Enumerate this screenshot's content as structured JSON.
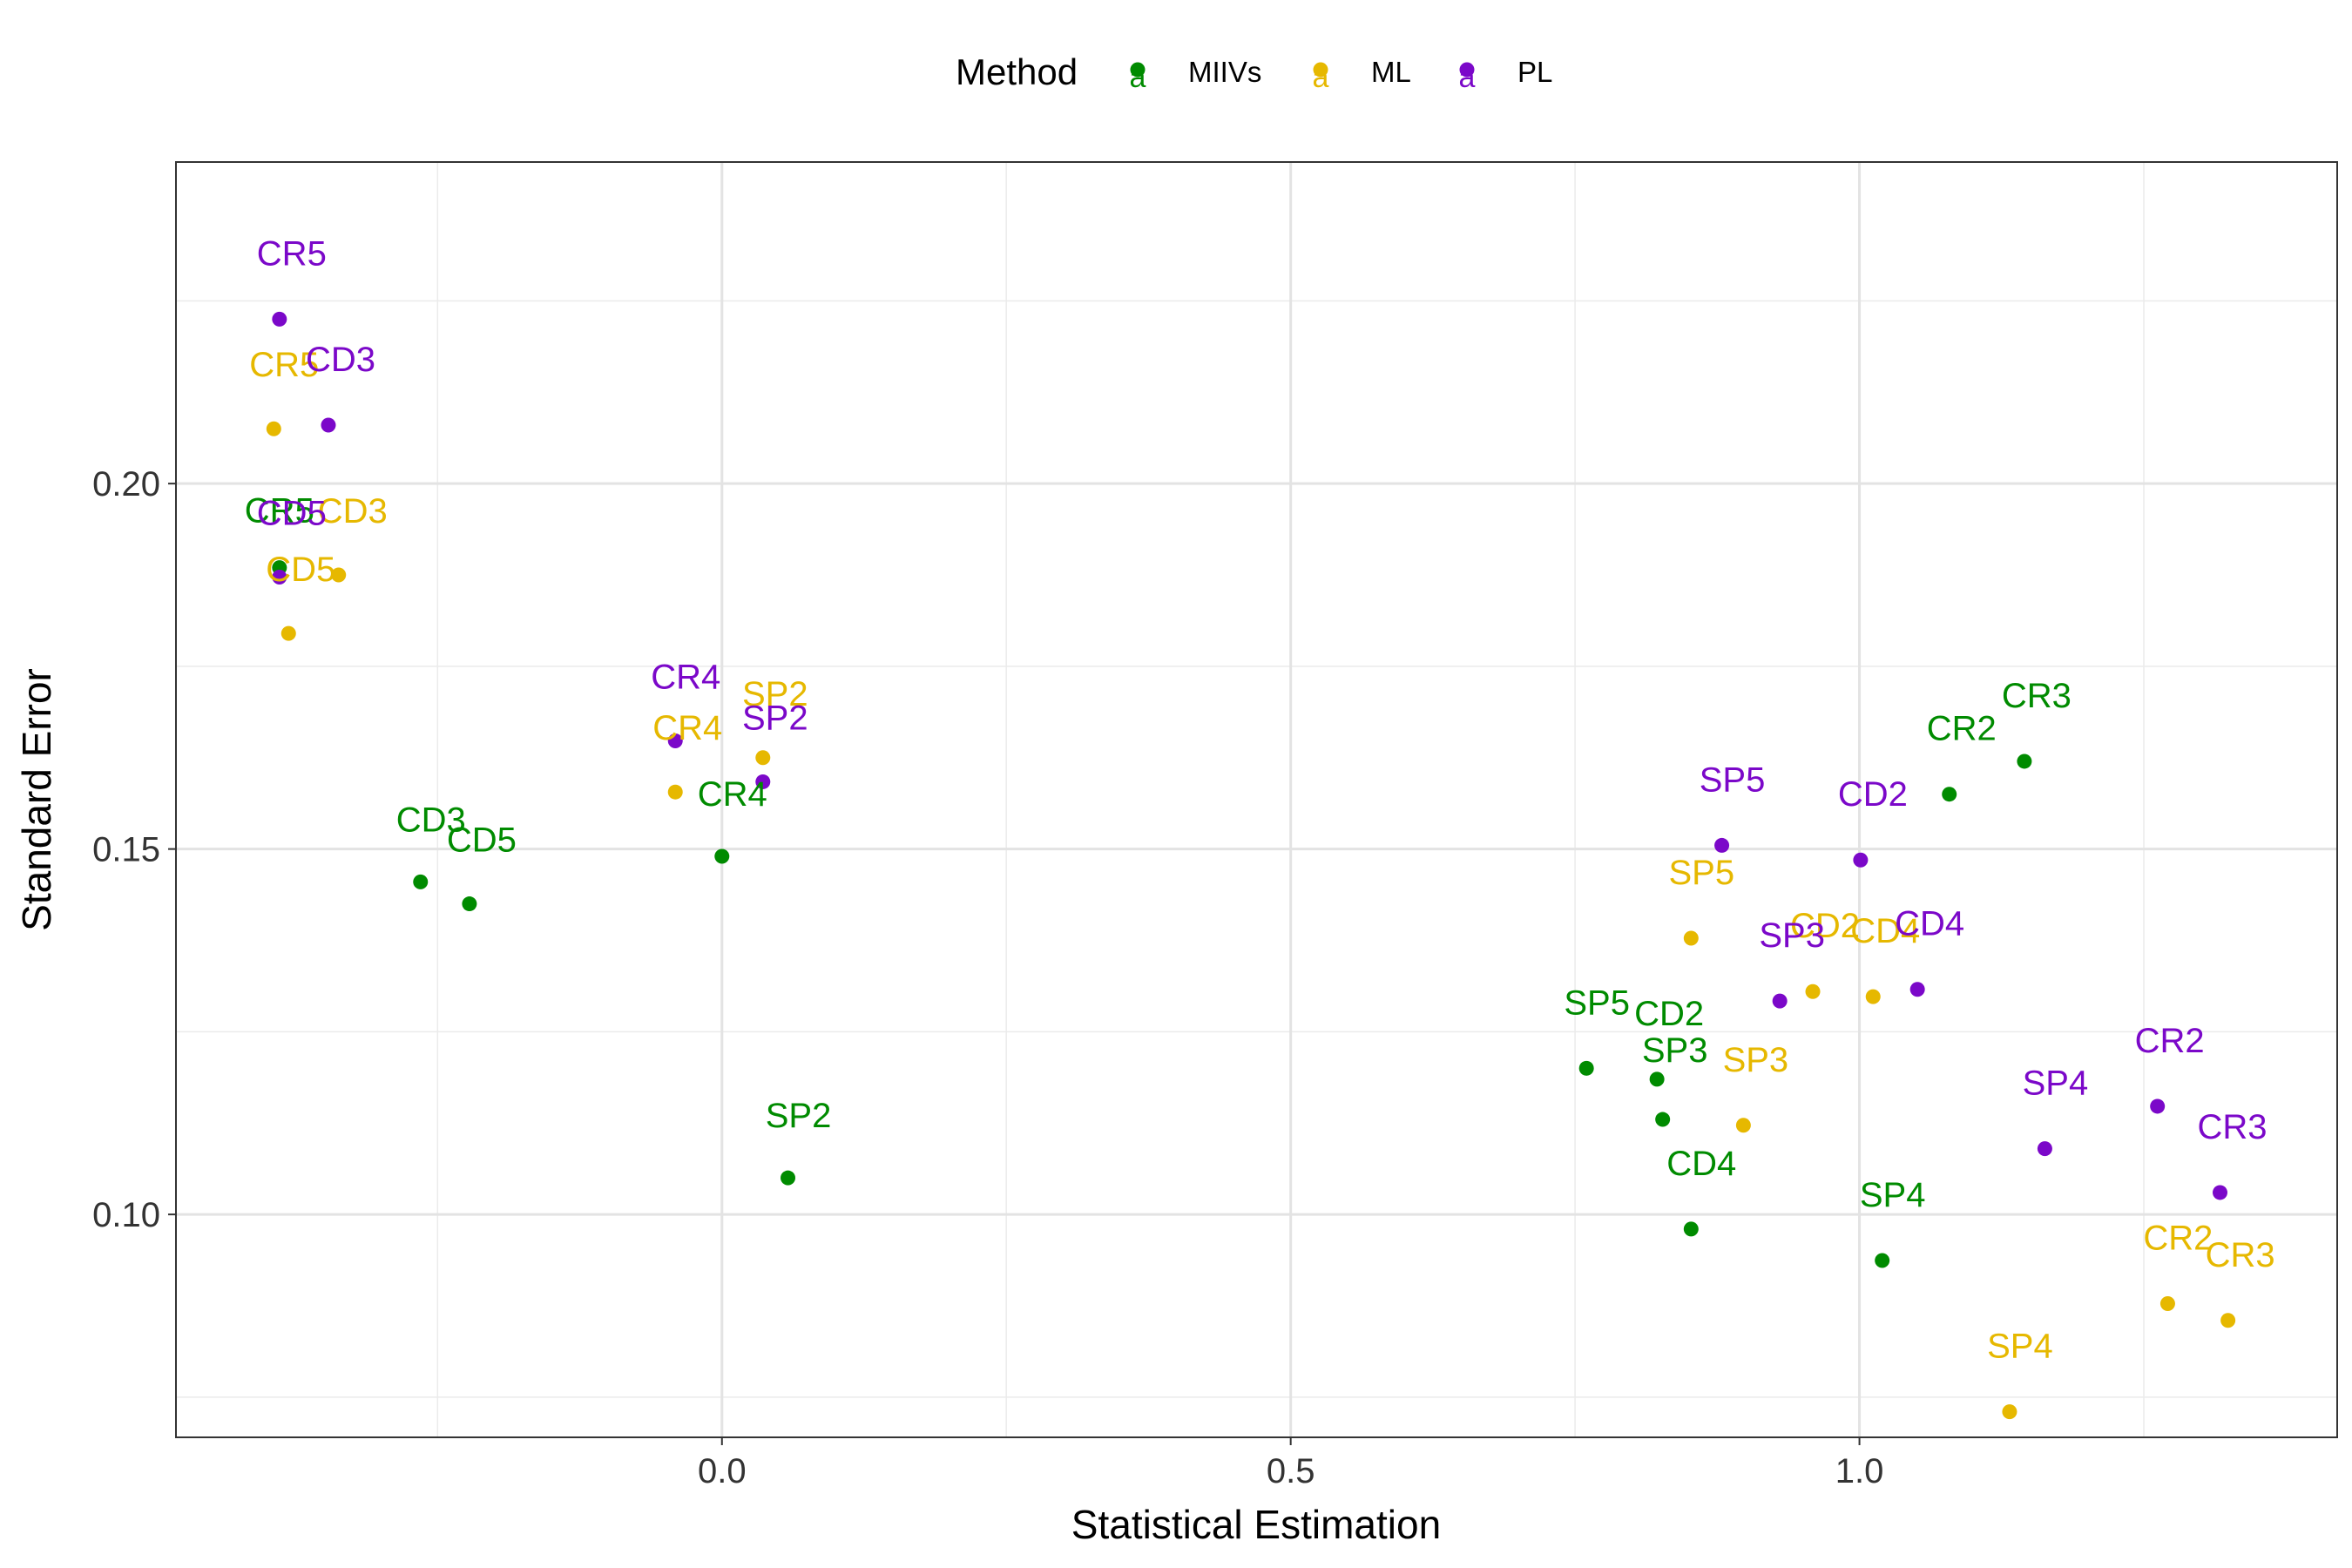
{
  "chart_data": {
    "type": "scatter",
    "xlabel": "Statistical Estimation",
    "ylabel": "Standard Error",
    "xlim": [
      -0.48,
      1.42
    ],
    "ylim": [
      0.0695,
      0.244
    ],
    "x_ticks": [
      0.0,
      0.5,
      1.0
    ],
    "x_tick_labels": [
      "0.0",
      "0.5",
      "1.0"
    ],
    "x_minor_ticks": [
      -0.25,
      0.25,
      0.75,
      1.25
    ],
    "y_ticks": [
      0.1,
      0.15,
      0.2
    ],
    "y_tick_labels": [
      "0.10",
      "0.15",
      "0.20"
    ],
    "y_minor_ticks": [
      0.075,
      0.125,
      0.175,
      0.225
    ],
    "grid": true,
    "legend": {
      "title": "Method",
      "position": "top",
      "key_glyph": "a"
    },
    "series": [
      {
        "name": "MIIVs",
        "color": "#008B00",
        "points": [
          {
            "label": "CR5",
            "x": -0.389,
            "y": 0.1885
          },
          {
            "label": "CD3",
            "x": -0.265,
            "y": 0.1455
          },
          {
            "label": "CD5",
            "x": -0.222,
            "y": 0.1425
          },
          {
            "label": "CR4",
            "x": 0.0,
            "y": 0.149
          },
          {
            "label": "SP2",
            "x": 0.058,
            "y": 0.105
          },
          {
            "label": "SP5",
            "x": 0.76,
            "y": 0.12
          },
          {
            "label": "CD2",
            "x": 0.822,
            "y": 0.1185
          },
          {
            "label": "SP3",
            "x": 0.827,
            "y": 0.113
          },
          {
            "label": "CD4",
            "x": 0.852,
            "y": 0.098
          },
          {
            "label": "SP4",
            "x": 1.02,
            "y": 0.0937
          },
          {
            "label": "CR2",
            "x": 1.079,
            "y": 0.1575
          },
          {
            "label": "CR3",
            "x": 1.145,
            "y": 0.162
          }
        ]
      },
      {
        "name": "ML",
        "color": "#E6B800",
        "points": [
          {
            "label": "CR5",
            "x": -0.394,
            "y": 0.2075
          },
          {
            "label": "CD3",
            "x": -0.337,
            "y": 0.1875
          },
          {
            "label": "CD5",
            "x": -0.381,
            "y": 0.1795
          },
          {
            "label": "CR4",
            "x": -0.041,
            "y": 0.1578
          },
          {
            "label": "SP2",
            "x": 0.036,
            "y": 0.1625
          },
          {
            "label": "SP5",
            "x": 0.852,
            "y": 0.1378
          },
          {
            "label": "SP3",
            "x": 0.898,
            "y": 0.1122
          },
          {
            "label": "CD2",
            "x": 0.959,
            "y": 0.1305
          },
          {
            "label": "CD4",
            "x": 1.012,
            "y": 0.1298
          },
          {
            "label": "SP4",
            "x": 1.132,
            "y": 0.073
          },
          {
            "label": "CR2",
            "x": 1.271,
            "y": 0.0878
          },
          {
            "label": "CR3",
            "x": 1.324,
            "y": 0.0855
          }
        ]
      },
      {
        "name": "PL",
        "color": "#7B08C9",
        "points": [
          {
            "label": "CR5",
            "x": -0.389,
            "y": 0.2225
          },
          {
            "label": "CD3",
            "x": -0.346,
            "y": 0.208
          },
          {
            "label": "CD5",
            "x": -0.389,
            "y": 0.1872
          },
          {
            "label": "CR4",
            "x": -0.041,
            "y": 0.1648
          },
          {
            "label": "SP2",
            "x": 0.036,
            "y": 0.1592
          },
          {
            "label": "SP5",
            "x": 0.879,
            "y": 0.1505
          },
          {
            "label": "SP3",
            "x": 0.93,
            "y": 0.1292
          },
          {
            "label": "CD2",
            "x": 1.001,
            "y": 0.1485
          },
          {
            "label": "CD4",
            "x": 1.051,
            "y": 0.1308
          },
          {
            "label": "SP4",
            "x": 1.163,
            "y": 0.109
          },
          {
            "label": "CR2",
            "x": 1.262,
            "y": 0.1148
          },
          {
            "label": "CR3",
            "x": 1.317,
            "y": 0.103
          }
        ]
      }
    ]
  }
}
